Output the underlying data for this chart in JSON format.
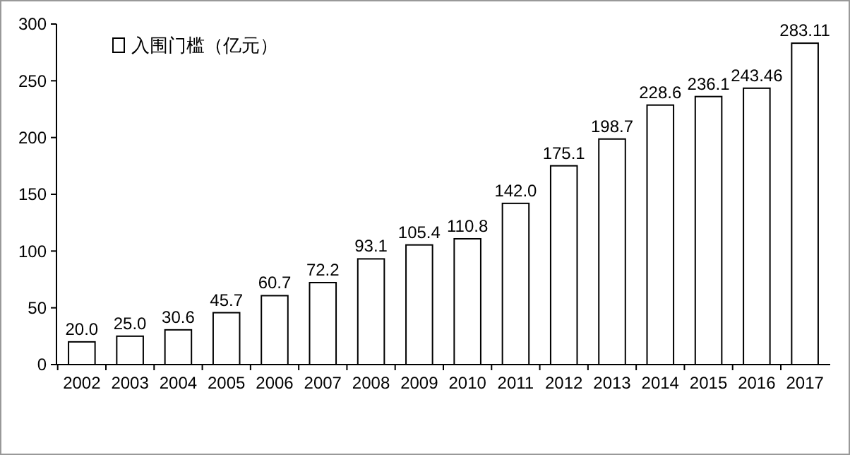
{
  "chart_data": {
    "type": "bar",
    "categories": [
      "2002",
      "2003",
      "2004",
      "2005",
      "2006",
      "2007",
      "2008",
      "2009",
      "2010",
      "2011",
      "2012",
      "2013",
      "2014",
      "2015",
      "2016",
      "2017"
    ],
    "series": [
      {
        "name": "入围门槛（亿元）",
        "color": "#ffffff",
        "values": [
          20.0,
          25.0,
          30.6,
          45.7,
          60.7,
          72.2,
          93.1,
          105.4,
          110.8,
          142.0,
          175.1,
          198.7,
          228.6,
          236.1,
          243.46,
          283.11
        ],
        "value_labels": [
          "20.0",
          "25.0",
          "30.6",
          "45.7",
          "60.7",
          "72.2",
          "93.1",
          "105.4",
          "110.8",
          "142.0",
          "175.1",
          "198.7",
          "228.6",
          "236.1",
          "243.46",
          "283.11"
        ]
      }
    ],
    "ylim": [
      0,
      300
    ],
    "yticks": [
      0,
      50,
      100,
      150,
      200,
      250,
      300
    ],
    "legend": "top left",
    "grid": false
  }
}
